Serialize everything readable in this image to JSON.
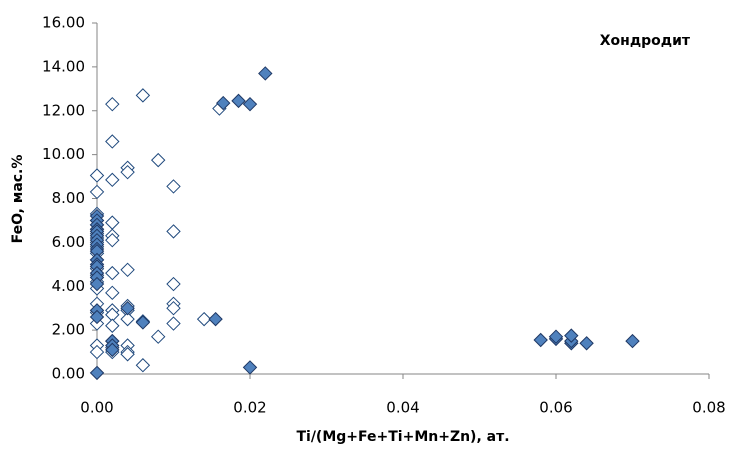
{
  "chart_data": {
    "type": "scatter",
    "annotation": "Хондродит",
    "x_label": "Ti/(Mg+Fe+Ti+Mn+Zn), ат.",
    "y_label": "FeO, мас.%",
    "xlim": [
      0,
      0.08
    ],
    "xticks": [
      {
        "value": 0,
        "label": "0.00"
      },
      {
        "value": 0.02,
        "label": "0.02"
      },
      {
        "value": 0.04,
        "label": "0.04"
      },
      {
        "value": 0.06,
        "label": "0.06"
      },
      {
        "value": 0.08,
        "label": "0.08"
      }
    ],
    "ylim": [
      0,
      16
    ],
    "yticks": [
      {
        "value": 0,
        "label": "0.00"
      },
      {
        "value": 2,
        "label": "2.00"
      },
      {
        "value": 4,
        "label": "4.00"
      },
      {
        "value": 6,
        "label": "6.00"
      },
      {
        "value": 8,
        "label": "8.00"
      },
      {
        "value": 10,
        "label": "10.00"
      },
      {
        "value": 12,
        "label": "12.00"
      },
      {
        "value": 14,
        "label": "14.00"
      },
      {
        "value": 16,
        "label": "16.00"
      }
    ],
    "grid": false,
    "series": [
      {
        "color": "#1f497d",
        "marker_fill": "#ffffff",
        "x": [
          0,
          0,
          0,
          0,
          0,
          0,
          0,
          0,
          0,
          0,
          0,
          0,
          0,
          0,
          0,
          0,
          0,
          0,
          0,
          0,
          0,
          0.002,
          0.002,
          0.002,
          0.002,
          0.002,
          0.002,
          0.002,
          0.002,
          0.002,
          0.002,
          0.002,
          0.002,
          0.002,
          0.002,
          0.004,
          0.004,
          0.004,
          0.004,
          0.004,
          0.004,
          0.004,
          0.004,
          0.004,
          0.006,
          0.006,
          0.006,
          0.008,
          0.008,
          0.01,
          0.01,
          0.01,
          0.01,
          0.01,
          0.01,
          0.014,
          0.016
        ],
        "values": [
          9.05,
          8.3,
          7.3,
          7.0,
          6.8,
          6.6,
          6.4,
          6.2,
          6.0,
          5.8,
          5.5,
          5.2,
          4.8,
          4.5,
          4.2,
          3.9,
          3.2,
          2.8,
          2.3,
          1.3,
          1.0,
          12.3,
          10.6,
          8.85,
          6.9,
          6.3,
          6.1,
          4.6,
          3.7,
          2.9,
          2.7,
          2.2,
          1.5,
          1.2,
          1.0,
          9.4,
          9.2,
          4.75,
          3.1,
          2.9,
          2.5,
          1.3,
          1.0,
          0.9,
          12.7,
          2.4,
          0.4,
          9.75,
          1.7,
          8.55,
          6.5,
          4.1,
          3.2,
          3.0,
          2.3,
          2.5,
          12.1
        ]
      },
      {
        "color": "#1f3864",
        "marker_fill": "#4f81bd",
        "x": [
          0,
          0,
          0,
          0,
          0,
          0,
          0,
          0,
          0,
          0,
          0,
          0,
          0,
          0,
          0,
          0,
          0,
          0,
          0,
          0.002,
          0.002,
          0.002,
          0.004,
          0.006,
          0.0155,
          0.0165,
          0.0185,
          0.02,
          0.02,
          0.022,
          0.058,
          0.06,
          0.06,
          0.062,
          0.062,
          0.062,
          0.064,
          0.07
        ],
        "values": [
          7.2,
          7.0,
          6.8,
          6.6,
          6.5,
          6.3,
          6.1,
          5.9,
          5.7,
          5.6,
          5.2,
          5.0,
          4.9,
          4.6,
          4.4,
          4.1,
          2.9,
          2.6,
          0.05,
          1.5,
          1.3,
          1.1,
          3.0,
          2.35,
          2.5,
          12.35,
          12.45,
          12.3,
          0.3,
          13.7,
          1.55,
          1.6,
          1.7,
          1.4,
          1.5,
          1.75,
          1.4,
          1.5
        ]
      }
    ]
  }
}
